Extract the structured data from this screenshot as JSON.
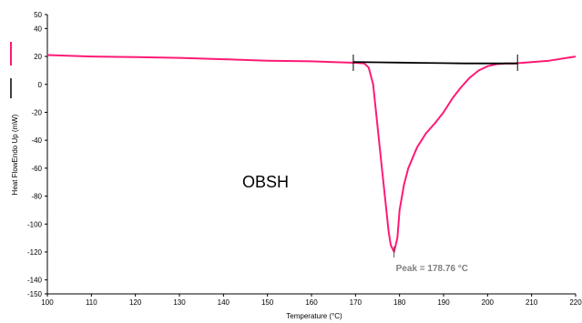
{
  "chart_data": {
    "type": "line",
    "xlabel": "Temperature (°C)",
    "ylabel": "Heat FlowEndo Up (mW)",
    "xlim": [
      100,
      220
    ],
    "ylim": [
      -150,
      50
    ],
    "x_ticks": [
      100,
      110,
      120,
      130,
      140,
      150,
      160,
      170,
      180,
      190,
      200,
      210,
      220
    ],
    "y_ticks": [
      50,
      40,
      20,
      0,
      -20,
      -40,
      -60,
      -80,
      -100,
      -120,
      -140,
      -150
    ],
    "grid": false,
    "annotations": {
      "sample_label": "OBSH",
      "peak_label": "Peak = 178.76 °C",
      "peak_x": 178.76,
      "peak_y": -120
    },
    "series": [
      {
        "color": "#ff1a75",
        "x": [
          100,
          110,
          120,
          130,
          140,
          150,
          160,
          165,
          170,
          172,
          173,
          174,
          175,
          176,
          177,
          177.5,
          178,
          178.76,
          179.5,
          180,
          181,
          182,
          184,
          186,
          188,
          190,
          192,
          194,
          196,
          198,
          200,
          202,
          204,
          206,
          208,
          210,
          214,
          218,
          220
        ],
        "y": [
          21,
          20,
          19.5,
          19,
          18,
          17,
          16.5,
          16,
          15.5,
          15,
          12,
          0,
          -30,
          -60,
          -90,
          -105,
          -115,
          -120,
          -110,
          -90,
          -72,
          -60,
          -45,
          -35,
          -28,
          -20,
          -10,
          -2,
          5,
          10,
          13,
          14.5,
          15,
          15,
          15.5,
          16,
          17,
          19,
          20
        ]
      },
      {
        "color": "#000000",
        "x": [
          169.5,
          175,
          180,
          185,
          190,
          195,
          200,
          206.8
        ],
        "y": [
          16,
          15.8,
          15.6,
          15.4,
          15.2,
          15,
          15,
          15
        ]
      }
    ],
    "baseline_markers_x": [
      169.5,
      206.8
    ]
  }
}
